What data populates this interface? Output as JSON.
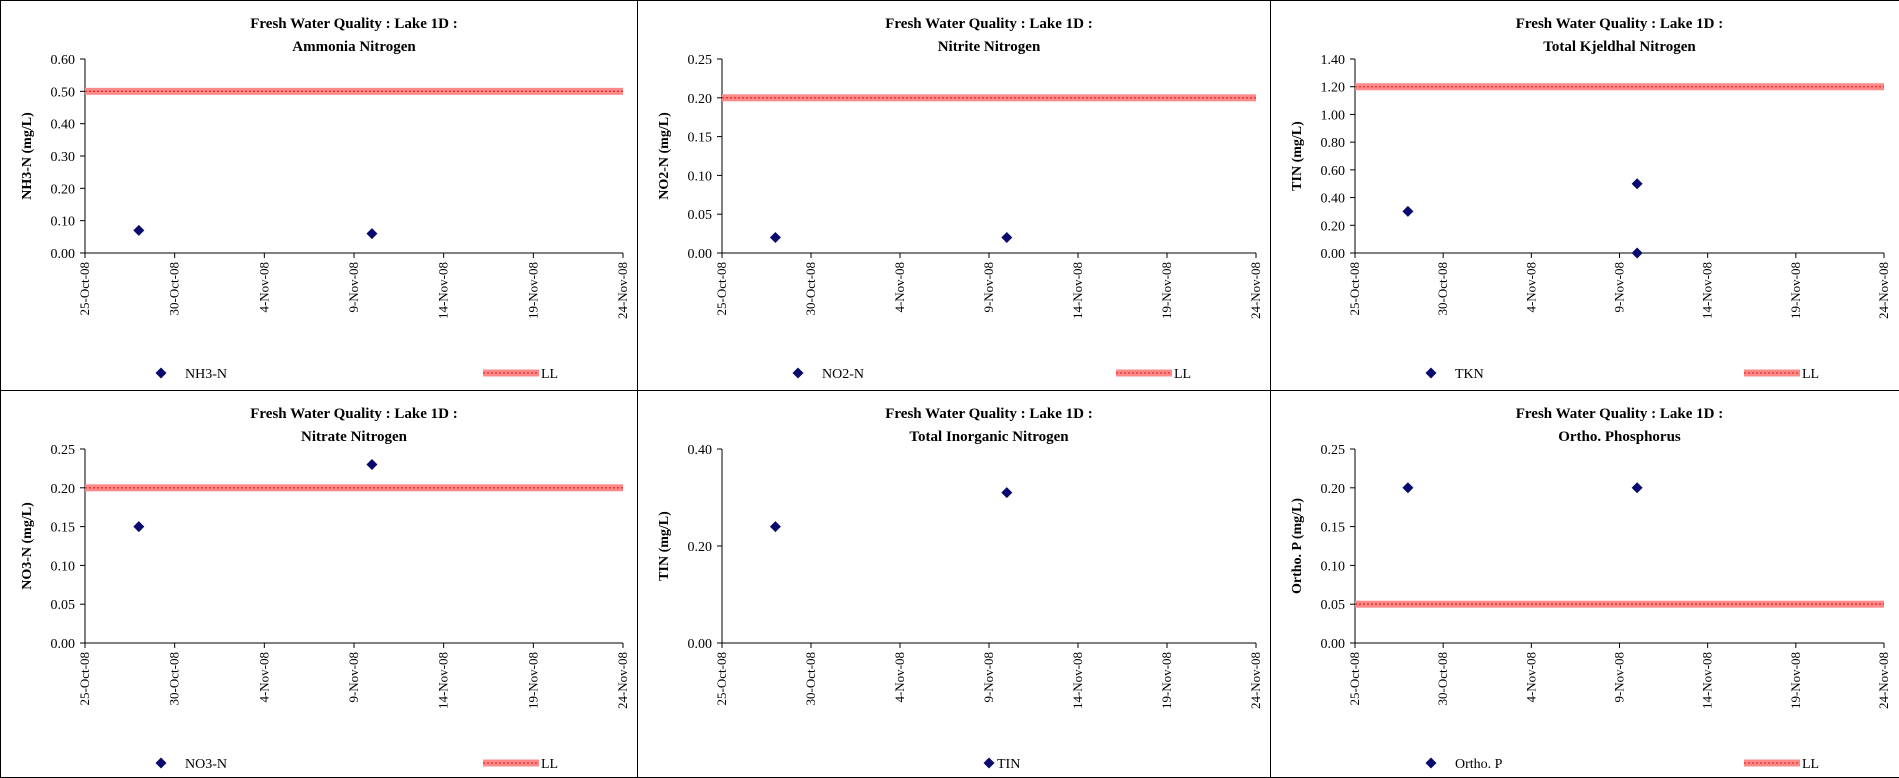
{
  "colors": {
    "marker": "#0a0a6e",
    "limit_line": "#ff8888",
    "limit_line_dark": "#e03030",
    "border": "#000000"
  },
  "chart_data": [
    {
      "type": "scatter",
      "title": "Fresh Water Quality : Lake 1D :",
      "subtitle": "Ammonia Nitrogen",
      "ylabel": "NH3-N (mg/L)",
      "xlabel": "",
      "ylim": [
        0,
        0.6
      ],
      "y_ticks": [
        "0.00",
        "0.10",
        "0.20",
        "0.30",
        "0.40",
        "0.50",
        "0.60"
      ],
      "x_ticks": [
        "25-Oct-08",
        "30-Oct-08",
        "4-Nov-08",
        "9-Nov-08",
        "14-Nov-08",
        "19-Nov-08",
        "24-Nov-08"
      ],
      "series": [
        {
          "name": "NH3-N",
          "style": "marker",
          "points": [
            [
              "2008-10-28",
              0.07
            ],
            [
              "2008-11-10",
              0.06
            ]
          ]
        },
        {
          "name": "LL",
          "style": "line",
          "value": 0.5
        }
      ],
      "grid": false,
      "legend": "bottom"
    },
    {
      "type": "scatter",
      "title": "Fresh Water Quality : Lake 1D :",
      "subtitle": "Nitrite Nitrogen",
      "ylabel": "NO2-N (mg/L)",
      "xlabel": "",
      "ylim": [
        0,
        0.25
      ],
      "y_ticks": [
        "0.00",
        "0.05",
        "0.10",
        "0.15",
        "0.20",
        "0.25"
      ],
      "x_ticks": [
        "25-Oct-08",
        "30-Oct-08",
        "4-Nov-08",
        "9-Nov-08",
        "14-Nov-08",
        "19-Nov-08",
        "24-Nov-08"
      ],
      "series": [
        {
          "name": "NO2-N",
          "style": "marker",
          "points": [
            [
              "2008-10-28",
              0.02
            ],
            [
              "2008-11-10",
              0.02
            ]
          ]
        },
        {
          "name": "LL",
          "style": "line",
          "value": 0.2
        }
      ],
      "grid": false,
      "legend": "bottom"
    },
    {
      "type": "scatter",
      "title": "Fresh Water Quality : Lake 1D :",
      "subtitle": "Total Kjeldhal Nitrogen",
      "ylabel": "TIN (mg/L)",
      "xlabel": "",
      "ylim": [
        0,
        1.4
      ],
      "y_ticks": [
        "0.00",
        "0.20",
        "0.40",
        "0.60",
        "0.80",
        "1.00",
        "1.20",
        "1.40"
      ],
      "x_ticks": [
        "25-Oct-08",
        "30-Oct-08",
        "4-Nov-08",
        "9-Nov-08",
        "14-Nov-08",
        "19-Nov-08",
        "24-Nov-08"
      ],
      "series": [
        {
          "name": "TKN",
          "style": "marker",
          "points": [
            [
              "2008-10-28",
              0.3
            ],
            [
              "2008-11-10",
              0.5
            ],
            [
              "2008-11-10",
              0.0
            ]
          ]
        },
        {
          "name": "LL",
          "style": "line",
          "value": 1.2
        }
      ],
      "grid": false,
      "legend": "bottom"
    },
    {
      "type": "scatter",
      "title": "Fresh Water Quality : Lake 1D :",
      "subtitle": "Nitrate Nitrogen",
      "ylabel": "NO3-N (mg/L)",
      "xlabel": "",
      "ylim": [
        0,
        0.25
      ],
      "y_ticks": [
        "0.00",
        "0.05",
        "0.10",
        "0.15",
        "0.20",
        "0.25"
      ],
      "x_ticks": [
        "25-Oct-08",
        "30-Oct-08",
        "4-Nov-08",
        "9-Nov-08",
        "14-Nov-08",
        "19-Nov-08",
        "24-Nov-08"
      ],
      "series": [
        {
          "name": "NO3-N",
          "style": "marker",
          "points": [
            [
              "2008-10-28",
              0.15
            ],
            [
              "2008-11-10",
              0.23
            ]
          ]
        },
        {
          "name": "LL",
          "style": "line",
          "value": 0.2
        }
      ],
      "grid": false,
      "legend": "bottom"
    },
    {
      "type": "scatter",
      "title": "Fresh Water Quality : Lake 1D :",
      "subtitle": "Total Inorganic Nitrogen",
      "ylabel": "TIN (mg/L)",
      "xlabel": "",
      "ylim": [
        0,
        0.4
      ],
      "y_ticks": [
        "0.00",
        "0.20",
        "0.40"
      ],
      "x_ticks": [
        "25-Oct-08",
        "30-Oct-08",
        "4-Nov-08",
        "9-Nov-08",
        "14-Nov-08",
        "19-Nov-08",
        "24-Nov-08"
      ],
      "series": [
        {
          "name": "TIN",
          "style": "marker",
          "points": [
            [
              "2008-10-28",
              0.24
            ],
            [
              "2008-11-10",
              0.31
            ]
          ]
        }
      ],
      "grid": false,
      "legend": "bottom"
    },
    {
      "type": "scatter",
      "title": "Fresh Water Quality : Lake 1D :",
      "subtitle": "Ortho. Phosphorus",
      "ylabel": "Ortho. P (mg/L)",
      "xlabel": "",
      "ylim": [
        0,
        0.25
      ],
      "y_ticks": [
        "0.00",
        "0.05",
        "0.10",
        "0.15",
        "0.20",
        "0.25"
      ],
      "x_ticks": [
        "25-Oct-08",
        "30-Oct-08",
        "4-Nov-08",
        "9-Nov-08",
        "14-Nov-08",
        "19-Nov-08",
        "24-Nov-08"
      ],
      "series": [
        {
          "name": "Ortho. P",
          "style": "marker",
          "points": [
            [
              "2008-10-28",
              0.2
            ],
            [
              "2008-11-10",
              0.2
            ]
          ]
        },
        {
          "name": "LL",
          "style": "line",
          "value": 0.05
        }
      ],
      "grid": false,
      "legend": "bottom"
    }
  ]
}
